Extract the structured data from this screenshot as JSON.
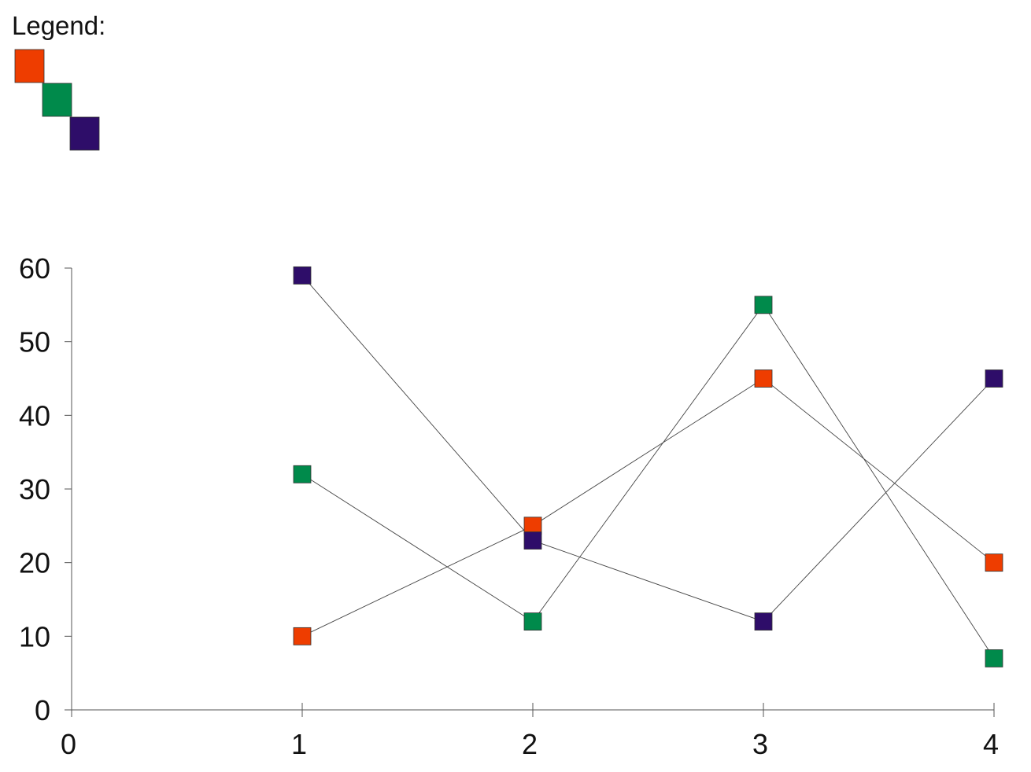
{
  "chart_data": {
    "type": "line",
    "title": "",
    "xlabel": "",
    "ylabel": "",
    "legend": {
      "title": "Legend:",
      "placement": "top-left",
      "swatch_colors": [
        "#ee3d00",
        "#008a4b",
        "#2e0d69"
      ]
    },
    "xlim": [
      0,
      4
    ],
    "ylim": [
      0,
      60
    ],
    "x_ticks": [
      0,
      1,
      2,
      3,
      4
    ],
    "y_ticks": [
      0,
      10,
      20,
      30,
      40,
      50,
      60
    ],
    "grid": false,
    "marker": "square",
    "x": [
      1,
      2,
      3,
      4
    ],
    "series": [
      {
        "color": "#ee3d00",
        "values": [
          10,
          25,
          45,
          20
        ]
      },
      {
        "color": "#008a4b",
        "values": [
          32,
          12,
          55,
          7
        ]
      },
      {
        "color": "#2e0d69",
        "values": [
          59,
          23,
          12,
          45
        ]
      }
    ]
  }
}
